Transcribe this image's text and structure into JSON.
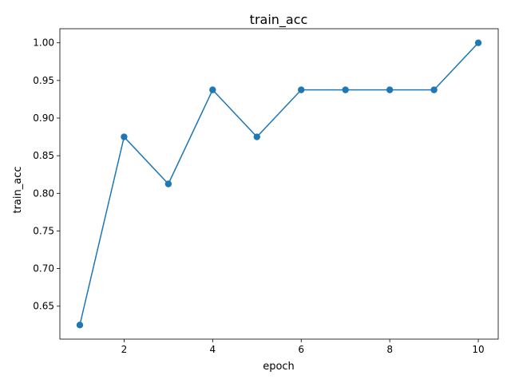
{
  "chart_data": {
    "type": "line",
    "title": "train_acc",
    "xlabel": "epoch",
    "ylabel": "train_acc",
    "x": [
      1,
      2,
      3,
      4,
      5,
      6,
      7,
      8,
      9,
      10
    ],
    "series": [
      {
        "values": [
          0.625,
          0.875,
          0.8125,
          0.9375,
          0.875,
          0.9375,
          0.9375,
          0.9375,
          0.9375,
          1.0
        ],
        "color": "#1f77b4",
        "marker": "circle"
      }
    ],
    "xlim": [
      0.55,
      10.45
    ],
    "ylim": [
      0.60625,
      1.01875
    ],
    "xticks": [
      2,
      4,
      6,
      8,
      10
    ],
    "xtick_labels": [
      "2",
      "4",
      "6",
      "8",
      "10"
    ],
    "yticks": [
      0.65,
      0.7,
      0.75,
      0.8,
      0.85,
      0.9,
      0.95,
      1.0
    ],
    "ytick_labels": [
      "0.65",
      "0.70",
      "0.75",
      "0.80",
      "0.85",
      "0.90",
      "0.95",
      "1.00"
    ],
    "grid": false,
    "legend": "none"
  }
}
